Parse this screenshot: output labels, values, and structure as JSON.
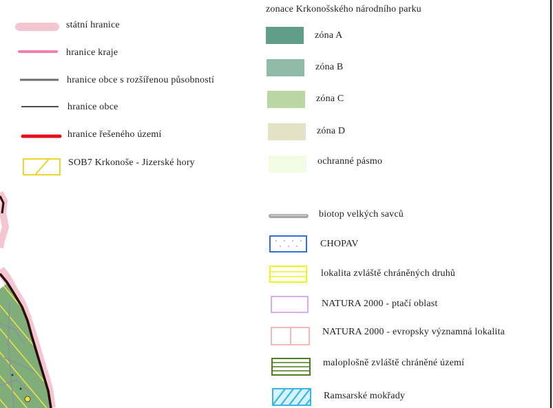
{
  "left_legend": [
    {
      "label": "státní hranice"
    },
    {
      "label": "hranice kraje"
    },
    {
      "label": "hranice obce s rozšířenou působností"
    },
    {
      "label": "hranice obce"
    },
    {
      "label": "hranice řešeného území"
    },
    {
      "label": "SOB7 Krkonoše - Jizerské hory"
    }
  ],
  "zonation": {
    "heading": "zonace Krkonošského národního parku",
    "items": [
      {
        "label": "zóna A",
        "color": "#5f9e88"
      },
      {
        "label": "zóna B",
        "color": "#8fbaa8"
      },
      {
        "label": "zóna C",
        "color": "#b9d6a3"
      },
      {
        "label": "zóna D",
        "color": "#e4e2c6"
      },
      {
        "label": "ochranné pásmo",
        "color": "#f2fbe4"
      }
    ]
  },
  "protection_legend": [
    {
      "label": "biotop velkých savců"
    },
    {
      "label": "CHOPAV"
    },
    {
      "label": "lokalita zvláště chráněných druhů"
    },
    {
      "label": "NATURA 2000 - ptačí oblast"
    },
    {
      "label": "NATURA 2000 - evropsky významná lokalita"
    },
    {
      "label": "maloplošně zvláště chráněné území"
    },
    {
      "label": "Ramsarské mokřady"
    }
  ]
}
